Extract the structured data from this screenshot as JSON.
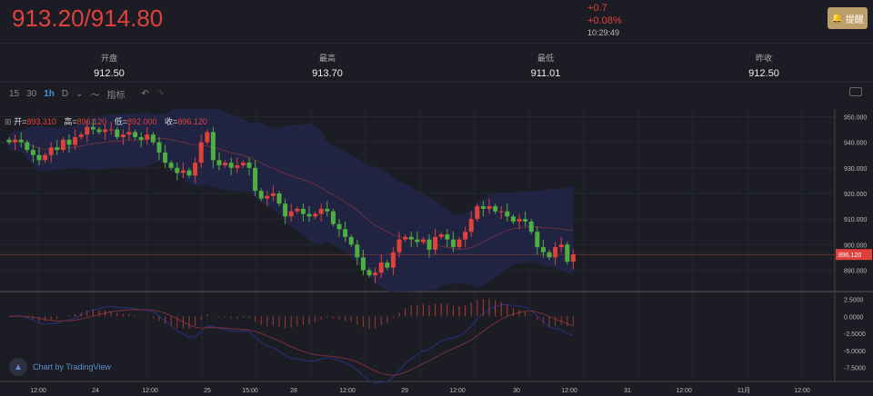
{
  "header": {
    "price": "913.20/914.80",
    "change": "+0.7",
    "change_pct": "+0.08%",
    "time": "10:29:49",
    "alert_label": "提醒",
    "alert_icon": "bell-icon"
  },
  "stats": [
    {
      "label": "开盘",
      "value": "912.50"
    },
    {
      "label": "最高",
      "value": "913.70"
    },
    {
      "label": "最低",
      "value": "911.01"
    },
    {
      "label": "昨收",
      "value": "912.50"
    }
  ],
  "toolbar": {
    "intervals": [
      "15",
      "30",
      "1h",
      "D"
    ],
    "active": "1h",
    "indicators_label": "指标"
  },
  "legend": {
    "open_label": "开=",
    "open": "893.310",
    "high_label": "高=",
    "high": "896.120",
    "low_label": "低=",
    "low": "892.000",
    "close_label": "收=",
    "close": "896.120"
  },
  "branding": "Chart by TradingView",
  "colors": {
    "up": "#e0413b",
    "down": "#4caf3f",
    "background": "#1c1d24",
    "alert": "#bc9e6a",
    "band": "#23264a"
  },
  "chart_data": {
    "type": "candlestick",
    "closes": [
      940,
      941,
      940,
      937,
      935,
      933,
      935,
      938,
      937,
      941,
      939,
      942,
      943,
      946,
      945,
      944,
      945,
      945,
      942,
      943,
      944,
      942,
      941,
      943,
      940,
      936,
      932,
      930,
      928,
      929,
      927,
      932,
      940,
      944,
      933,
      931,
      932,
      930,
      931,
      932,
      930,
      921,
      918,
      919,
      920,
      916,
      911,
      913,
      914,
      912,
      911,
      912,
      914,
      913,
      908,
      906,
      903,
      900,
      895,
      890,
      888,
      889,
      893,
      891,
      897,
      902,
      903,
      902,
      901,
      902,
      898,
      903,
      904,
      902,
      899,
      902,
      905,
      910,
      915,
      914,
      915,
      913,
      913,
      911,
      909,
      910,
      909,
      905,
      899,
      897,
      895,
      899,
      900,
      893.31,
      896.12
    ],
    "last_price": "896.120",
    "price_ticks": [
      "950.000",
      "940.000",
      "930.000",
      "920.000",
      "910.000",
      "900.000",
      "890.000"
    ],
    "price_range": [
      882,
      953
    ],
    "macd_ticks": [
      "2.5000",
      "0.0000",
      "-2.5000",
      "-5.0000",
      "-7.5000"
    ],
    "macd_range": [
      -9,
      3.5
    ],
    "time_labels": [
      "12:00",
      "24",
      "12:00",
      "25",
      "15:00",
      "28",
      "12:00",
      "29",
      "12:00",
      "30",
      "12:00",
      "31",
      "12:00",
      "11月",
      "12:00"
    ],
    "up_color": "red",
    "down_color": "green"
  }
}
